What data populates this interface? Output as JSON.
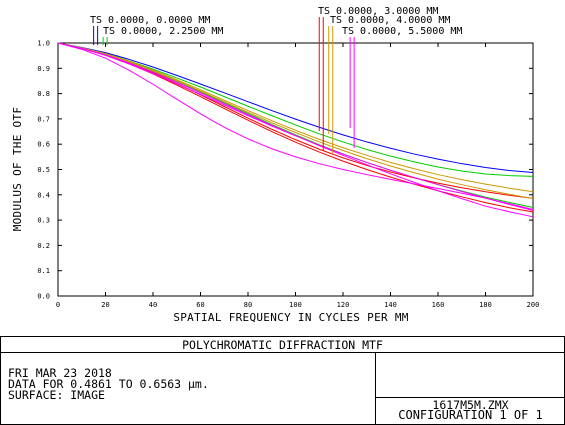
{
  "chart_data": {
    "type": "line",
    "title": "POLYCHROMATIC DIFFRACTION MTF",
    "xlabel": "SPATIAL FREQUENCY IN CYCLES PER MM",
    "ylabel": "MODULUS OF THE OTF",
    "xlim": [
      0,
      200
    ],
    "ylim": [
      0,
      1
    ],
    "x_ticks": [
      "0",
      "20",
      "40",
      "60",
      "80",
      "100",
      "120",
      "140",
      "160",
      "180",
      "200"
    ],
    "y_ticks": [
      "0.0",
      "0.1",
      "0.2",
      "0.3",
      "0.4",
      "0.5",
      "0.6",
      "0.7",
      "0.8",
      "0.9",
      "1.0"
    ],
    "grid": false,
    "x": [
      0,
      10,
      20,
      30,
      40,
      50,
      60,
      70,
      80,
      90,
      100,
      110,
      120,
      130,
      140,
      150,
      160,
      170,
      180,
      190,
      200
    ],
    "fields": [
      {
        "label": "TS 0.0000, 0.0000 MM",
        "color": "#0000ff",
        "marker_x": 15
      },
      {
        "label": "TS 0.0000, 2.2500 MM",
        "color": "#00cc00",
        "marker_x": 19
      },
      {
        "label": "TS 0.0000, 3.0000 MM",
        "color": "#ff0000",
        "marker_x": 110
      },
      {
        "label": "TS 0.0000, 4.0000 MM",
        "color": "#cc9900",
        "marker_x": 114
      },
      {
        "label": "TS 0.0000, 5.5000 MM",
        "color": "#ff00ff",
        "marker_x": 123
      }
    ],
    "series": [
      {
        "color": "#0000ff",
        "values": [
          1.0,
          0.982,
          0.962,
          0.935,
          0.905,
          0.872,
          0.838,
          0.803,
          0.768,
          0.733,
          0.699,
          0.667,
          0.637,
          0.609,
          0.584,
          0.561,
          0.541,
          0.523,
          0.508,
          0.496,
          0.488
        ]
      },
      {
        "color": "#00cc00",
        "values": [
          1.0,
          0.981,
          0.958,
          0.929,
          0.897,
          0.862,
          0.826,
          0.788,
          0.75,
          0.713,
          0.676,
          0.641,
          0.609,
          0.579,
          0.553,
          0.53,
          0.51,
          0.494,
          0.482,
          0.476,
          0.473
        ]
      },
      {
        "color": "#00cc00",
        "values": [
          1.0,
          0.98,
          0.955,
          0.924,
          0.888,
          0.849,
          0.807,
          0.764,
          0.721,
          0.678,
          0.637,
          0.598,
          0.562,
          0.528,
          0.497,
          0.468,
          0.441,
          0.415,
          0.391,
          0.37,
          0.35
        ]
      },
      {
        "color": "#ff0000",
        "values": [
          1.0,
          0.979,
          0.952,
          0.918,
          0.878,
          0.834,
          0.788,
          0.741,
          0.695,
          0.65,
          0.608,
          0.569,
          0.533,
          0.5,
          0.47,
          0.442,
          0.416,
          0.392,
          0.369,
          0.349,
          0.332
        ]
      },
      {
        "color": "#ff0000",
        "values": [
          1.0,
          0.979,
          0.953,
          0.92,
          0.882,
          0.84,
          0.795,
          0.749,
          0.703,
          0.659,
          0.618,
          0.58,
          0.546,
          0.516,
          0.49,
          0.467,
          0.446,
          0.428,
          0.412,
          0.398,
          0.386
        ]
      },
      {
        "color": "#cc9900",
        "values": [
          1.0,
          0.98,
          0.956,
          0.925,
          0.89,
          0.851,
          0.81,
          0.768,
          0.726,
          0.685,
          0.646,
          0.609,
          0.575,
          0.543,
          0.514,
          0.487,
          0.462,
          0.44,
          0.42,
          0.402,
          0.385
        ]
      },
      {
        "color": "#cc9900",
        "values": [
          1.0,
          0.981,
          0.958,
          0.928,
          0.893,
          0.855,
          0.815,
          0.774,
          0.733,
          0.693,
          0.655,
          0.619,
          0.586,
          0.556,
          0.528,
          0.503,
          0.48,
          0.46,
          0.442,
          0.426,
          0.412
        ]
      },
      {
        "color": "#ff00ff",
        "values": [
          1.0,
          0.975,
          0.94,
          0.892,
          0.837,
          0.778,
          0.72,
          0.667,
          0.621,
          0.582,
          0.55,
          0.523,
          0.5,
          0.48,
          0.461,
          0.443,
          0.425,
          0.406,
          0.387,
          0.365,
          0.342
        ]
      },
      {
        "color": "#ff00ff",
        "values": [
          1.0,
          0.978,
          0.951,
          0.917,
          0.879,
          0.839,
          0.797,
          0.755,
          0.713,
          0.672,
          0.633,
          0.596,
          0.561,
          0.528,
          0.497,
          0.468,
          0.44,
          0.413,
          0.387,
          0.362,
          0.338
        ]
      },
      {
        "color": "#ff00ff",
        "values": [
          1.0,
          0.979,
          0.953,
          0.921,
          0.885,
          0.845,
          0.803,
          0.76,
          0.717,
          0.675,
          0.634,
          0.594,
          0.556,
          0.519,
          0.483,
          0.449,
          0.416,
          0.385,
          0.355,
          0.333,
          0.313
        ]
      }
    ]
  },
  "footer": {
    "title": "POLYCHROMATIC DIFFRACTION MTF",
    "date": "FRI MAR 23 2018",
    "data_range": "DATA FOR 0.4861 TO 0.6563 µm.",
    "surface": "SURFACE: IMAGE",
    "file": "1617M5M.ZMX",
    "configuration": "CONFIGURATION 1 OF 1"
  }
}
